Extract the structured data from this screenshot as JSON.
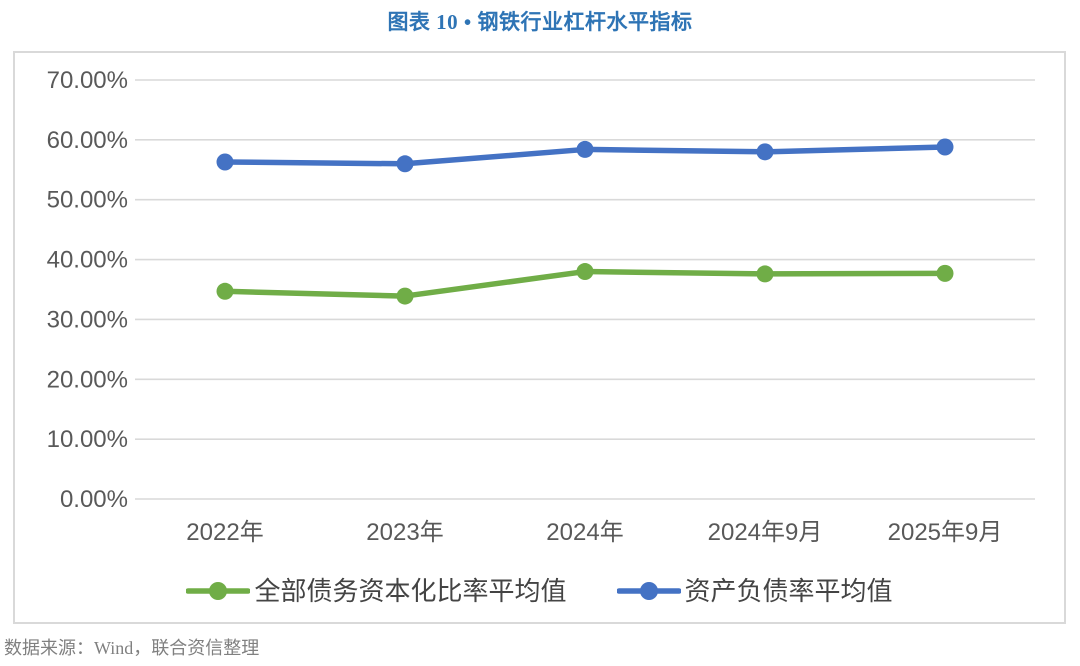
{
  "title": {
    "text": "图表 10 • 钢铁行业杠杆水平指标",
    "color": "#2E74B5"
  },
  "footer": {
    "text": "数据来源：Wind，联合资信整理"
  },
  "chart_data": {
    "type": "line",
    "categories": [
      "2022年",
      "2023年",
      "2024年",
      "2024年9月",
      "2025年9月"
    ],
    "series": [
      {
        "name": "全部债务资本化比率平均值",
        "color": "#70AD47",
        "values": [
          34.7,
          33.9,
          38.0,
          37.6,
          37.7
        ]
      },
      {
        "name": "资产负债率平均值",
        "color": "#4472C4",
        "values": [
          56.3,
          56.0,
          58.4,
          58.0,
          58.8
        ]
      }
    ],
    "ylim": [
      0,
      70
    ],
    "ytick_step": 10,
    "ytick_labels": [
      "0.00%",
      "10.00%",
      "20.00%",
      "30.00%",
      "40.00%",
      "50.00%",
      "60.00%",
      "70.00%"
    ],
    "grid": true,
    "legend_position": "bottom",
    "marker": "circle",
    "colors": {
      "gridline": "#D9D9D9",
      "plot_border": "#D9D9D9",
      "axis_labels": "#595959",
      "legend_text": "#444444"
    }
  }
}
